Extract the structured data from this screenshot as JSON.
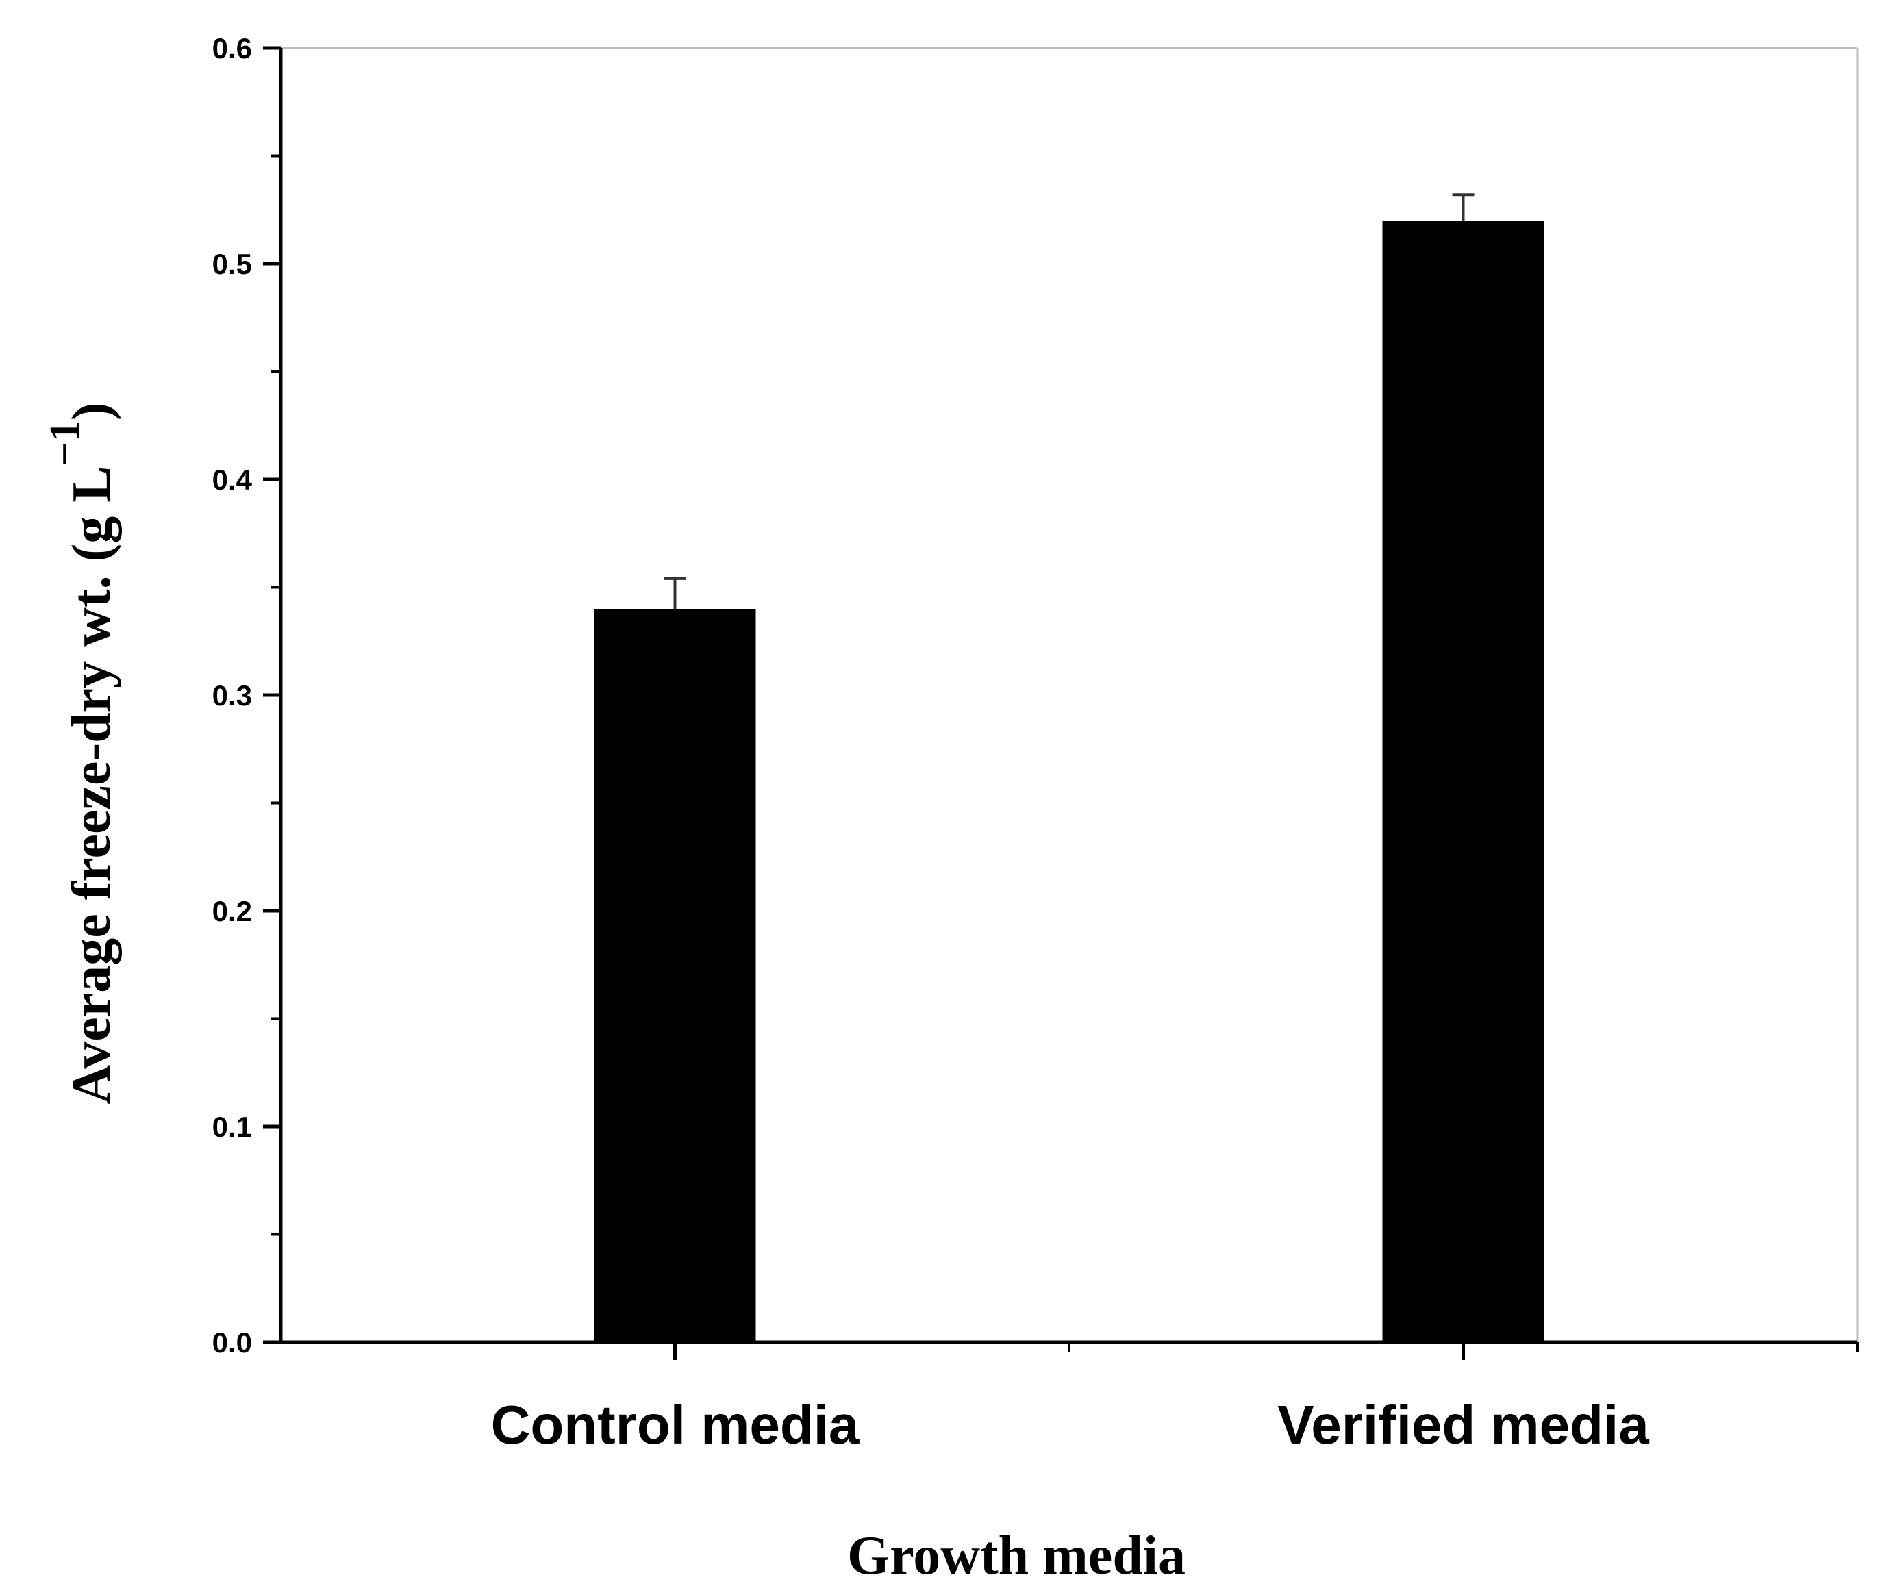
{
  "chart_data": {
    "type": "bar",
    "categories": [
      "Control media",
      "Verified media"
    ],
    "values": [
      0.34,
      0.52
    ],
    "errors": [
      0.014,
      0.012
    ],
    "title": "",
    "xlabel": "Growth media",
    "ylabel": "Average freeze-dry wt. (g L",
    "ylabel_unit_exponent": "−1",
    "ylabel_close": ")",
    "ylim": [
      0,
      0.6
    ],
    "yticks": [
      "0.0",
      "0.1",
      "0.2",
      "0.3",
      "0.4",
      "0.5",
      "0.6"
    ],
    "bar_color": "#000000",
    "grid": false,
    "legend": "none"
  }
}
